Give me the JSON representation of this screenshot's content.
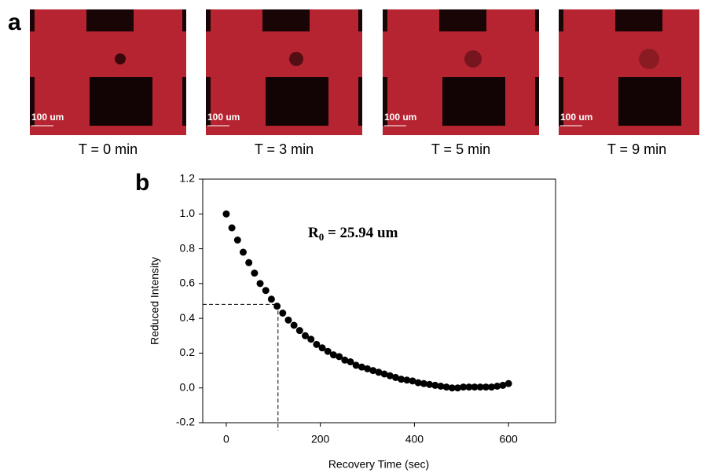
{
  "panel_a": {
    "label": "a",
    "images": [
      {
        "caption": "T = 0 min",
        "scale_bar": "100 um"
      },
      {
        "caption": "T = 3 min",
        "scale_bar": "100 um"
      },
      {
        "caption": "T = 5 min",
        "scale_bar": "100 um"
      },
      {
        "caption": "T = 9 min",
        "scale_bar": "100 um"
      }
    ]
  },
  "panel_b": {
    "label": "b"
  },
  "chart_data": {
    "type": "scatter",
    "xlabel": "Recovery Time (sec)",
    "ylabel": "Reduced Intensity",
    "annotation": {
      "text": "R",
      "subscript": "0",
      "rest": " = 25.94 um"
    },
    "x": [
      0,
      12,
      24,
      36,
      48,
      60,
      72,
      84,
      96,
      108,
      120,
      132,
      144,
      156,
      168,
      180,
      192,
      204,
      216,
      228,
      240,
      252,
      264,
      276,
      288,
      300,
      312,
      324,
      336,
      348,
      360,
      372,
      384,
      396,
      408,
      420,
      432,
      444,
      456,
      468,
      480,
      492,
      504,
      516,
      528,
      540,
      552,
      564,
      576,
      588,
      600
    ],
    "series": [
      {
        "name": "Reduced Intensity",
        "color": "#000000",
        "values": [
          1.0,
          0.92,
          0.85,
          0.78,
          0.72,
          0.66,
          0.6,
          0.56,
          0.51,
          0.47,
          0.43,
          0.39,
          0.36,
          0.33,
          0.3,
          0.28,
          0.25,
          0.23,
          0.21,
          0.19,
          0.18,
          0.16,
          0.15,
          0.13,
          0.12,
          0.11,
          0.1,
          0.09,
          0.08,
          0.07,
          0.06,
          0.05,
          0.045,
          0.04,
          0.03,
          0.025,
          0.02,
          0.015,
          0.01,
          0.005,
          0.0,
          0.0,
          0.005,
          0.005,
          0.005,
          0.005,
          0.005,
          0.005,
          0.01,
          0.015,
          0.025
        ]
      }
    ],
    "reference_lines": {
      "x": 110,
      "y": 0.48
    },
    "xlim": [
      -50,
      700
    ],
    "ylim": [
      -0.2,
      1.2
    ],
    "xticks": [
      0,
      200,
      400,
      600
    ],
    "yticks": [
      {
        "value": -0.2,
        "label": "-0.2"
      },
      {
        "value": 0,
        "label": "0.0"
      },
      {
        "value": 0.2,
        "label": "0.2"
      },
      {
        "value": 0.4,
        "label": "0.4"
      },
      {
        "value": 0.6,
        "label": "0.6"
      },
      {
        "value": 0.8,
        "label": "0.8"
      },
      {
        "value": 1,
        "label": "1.0"
      },
      {
        "value": 1.2,
        "label": "1.2"
      }
    ]
  }
}
